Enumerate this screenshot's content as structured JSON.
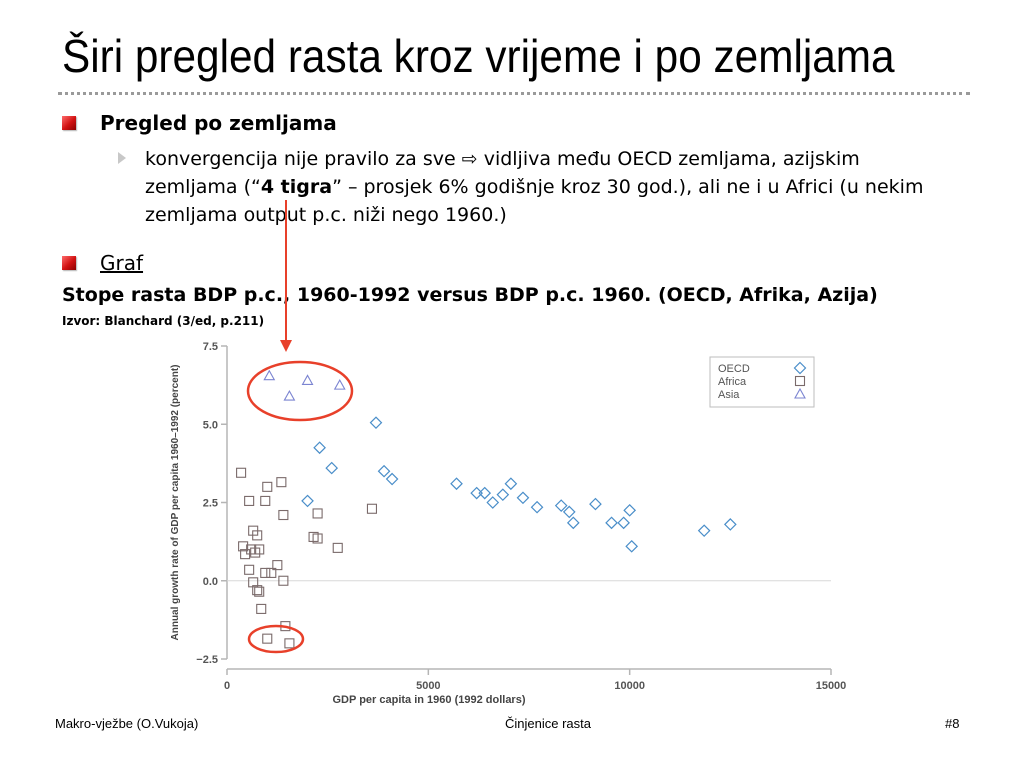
{
  "slide": {
    "title": "Širi pregled rasta kroz vrijeme i po zemljama",
    "bullets": [
      {
        "label": "Pregled po zemljama",
        "sub": {
          "text_before": "konvergencija nije pravilo za sve ",
          "arrow": "⇨",
          "text_mid": " vidljiva među OECD zemljama, azijskim zemljama (“",
          "bold": "4 tigra",
          "text_after": "” – prosjek 6% godišnje kroz 30 god.), ali ne i u Africi (u nekim zemljama output p.c. niži nego  1960.)"
        }
      },
      {
        "label": "Graf"
      }
    ],
    "chart_heading": "Stope rasta BDP p.c., 1960-1992 versus BDP p.c. 1960. (OECD, Afrika, Azija)",
    "chart_source": "Izvor: Blanchard (3/ed, p.211)"
  },
  "footer": {
    "left": "Makro-vježbe (O.Vukoja)",
    "center": "Činjenice rasta",
    "right": "#8"
  },
  "colors": {
    "accent_red": "#d01010",
    "oecd": "#4a8ec9",
    "africa": "#7a6a6a",
    "asia": "#7b84d1",
    "annotation": "#e8402a"
  },
  "chart_data": {
    "type": "scatter",
    "xlabel": "GDP per capita in 1960 (1992 dollars)",
    "ylabel": "Annual growth rate of GDP per capita 1960–1992 (percent)",
    "xlim": [
      0,
      15000
    ],
    "ylim": [
      -2.5,
      7.5
    ],
    "xticks": [
      0,
      5000,
      10000,
      15000
    ],
    "xtick_labels": [
      "0",
      "5000",
      "10000",
      "15000"
    ],
    "yticks": [
      -2.5,
      0.0,
      2.5,
      5.0,
      7.5
    ],
    "ytick_labels": [
      "−2.5",
      "0.0",
      "2.5",
      "5.0",
      "7.5"
    ],
    "grid": false,
    "legend_position": "top-right",
    "series": [
      {
        "name": "OECD",
        "marker": "diamond",
        "points": [
          [
            3700,
            5.05
          ],
          [
            2000,
            2.55
          ],
          [
            2300,
            4.25
          ],
          [
            2600,
            3.6
          ],
          [
            3900,
            3.5
          ],
          [
            4100,
            3.25
          ],
          [
            5700,
            3.1
          ],
          [
            6200,
            2.8
          ],
          [
            6400,
            2.8
          ],
          [
            6600,
            2.5
          ],
          [
            6850,
            2.75
          ],
          [
            7050,
            3.1
          ],
          [
            7350,
            2.65
          ],
          [
            7700,
            2.35
          ],
          [
            8300,
            2.4
          ],
          [
            8500,
            2.2
          ],
          [
            8600,
            1.85
          ],
          [
            9150,
            2.45
          ],
          [
            9550,
            1.85
          ],
          [
            9850,
            1.85
          ],
          [
            10000,
            2.25
          ],
          [
            10050,
            1.1
          ],
          [
            11850,
            1.6
          ],
          [
            12500,
            1.8
          ]
        ]
      },
      {
        "name": "Africa",
        "marker": "square",
        "points": [
          [
            350,
            3.45
          ],
          [
            550,
            2.55
          ],
          [
            950,
            2.55
          ],
          [
            1000,
            3.0
          ],
          [
            1350,
            3.15
          ],
          [
            1400,
            2.1
          ],
          [
            2250,
            2.15
          ],
          [
            2150,
            1.4
          ],
          [
            2250,
            1.35
          ],
          [
            2750,
            1.05
          ],
          [
            3600,
            2.3
          ],
          [
            400,
            1.1
          ],
          [
            450,
            0.85
          ],
          [
            600,
            1.0
          ],
          [
            650,
            1.6
          ],
          [
            700,
            0.9
          ],
          [
            750,
            1.45
          ],
          [
            800,
            1.0
          ],
          [
            550,
            0.35
          ],
          [
            650,
            -0.05
          ],
          [
            750,
            -0.3
          ],
          [
            800,
            -0.35
          ],
          [
            950,
            0.25
          ],
          [
            1100,
            0.25
          ],
          [
            1250,
            0.5
          ],
          [
            1400,
            0.0
          ],
          [
            850,
            -0.9
          ],
          [
            1000,
            -1.85
          ],
          [
            1450,
            -1.45
          ],
          [
            1550,
            -2.0
          ]
        ]
      },
      {
        "name": "Asia",
        "marker": "triangle",
        "points": [
          [
            1050,
            6.55
          ],
          [
            1550,
            5.9
          ],
          [
            2000,
            6.4
          ],
          [
            2800,
            6.25
          ]
        ]
      }
    ]
  }
}
